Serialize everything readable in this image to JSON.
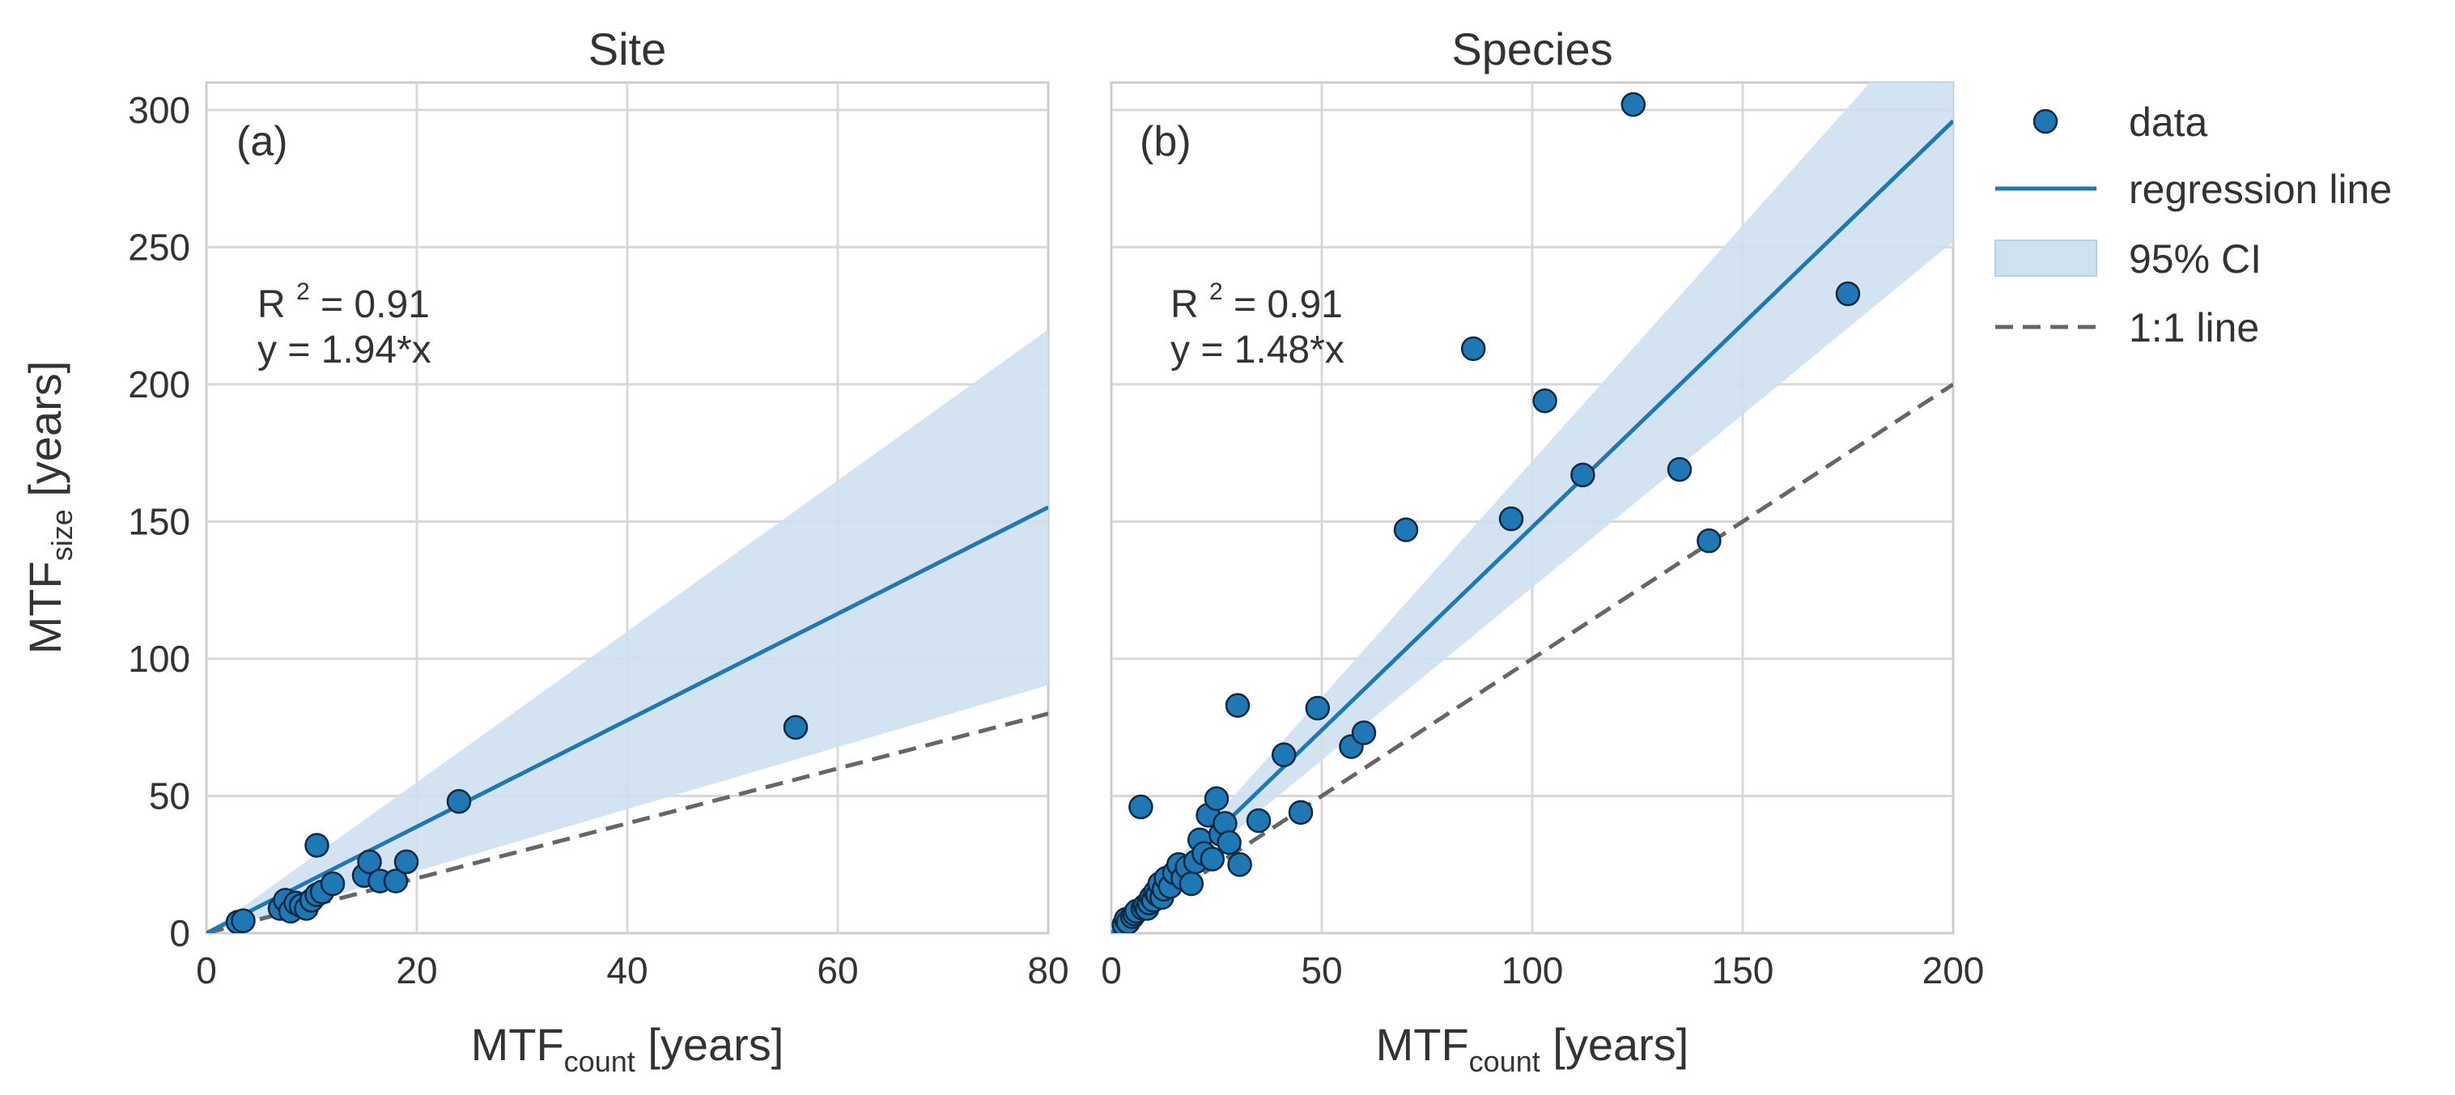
{
  "chart_data": [
    {
      "type": "scatter",
      "title": "Site",
      "panel_label": "(a)",
      "xlabel": {
        "main": "MTF",
        "sub": "count",
        "unit": " [years]"
      },
      "ylabel": {
        "main": "MTF",
        "sub": "size",
        "unit": " [years]"
      },
      "xlim": [
        0,
        80
      ],
      "ylim": [
        0,
        310
      ],
      "xticks": [
        "0",
        "20",
        "40",
        "60",
        "80"
      ],
      "yticks": [
        "0",
        "50",
        "100",
        "150",
        "200",
        "250",
        "300"
      ],
      "grid": true,
      "annotation": {
        "r2": "R",
        "r2_sup": "2",
        "r2_value": "= 0.91",
        "equation": "y = 1.94*x"
      },
      "slope": 1.94,
      "ci_upper_slope": 2.75,
      "ci_lower_slope": 1.13,
      "series": [
        {
          "name": "data",
          "type": "scatter",
          "points": [
            [
              3,
              4
            ],
            [
              3.5,
              4.5
            ],
            [
              7,
              9
            ],
            [
              7.5,
              12
            ],
            [
              8,
              8
            ],
            [
              8.5,
              11
            ],
            [
              9,
              10
            ],
            [
              9.5,
              9
            ],
            [
              10,
              12
            ],
            [
              10.5,
              14
            ],
            [
              11,
              15
            ],
            [
              10.5,
              32
            ],
            [
              12,
              18
            ],
            [
              15,
              21
            ],
            [
              15.5,
              26
            ],
            [
              16.5,
              19
            ],
            [
              18,
              19
            ],
            [
              19,
              26
            ],
            [
              24,
              48
            ],
            [
              56,
              75
            ]
          ]
        },
        {
          "name": "regression line",
          "type": "line",
          "slope": 1.94
        },
        {
          "name": "95% CI",
          "type": "band"
        },
        {
          "name": "1:1 line",
          "type": "line",
          "slope": 1
        }
      ]
    },
    {
      "type": "scatter",
      "title": "Species",
      "panel_label": "(b)",
      "xlabel": {
        "main": "MTF",
        "sub": "count",
        "unit": " [years]"
      },
      "xlim": [
        0,
        200
      ],
      "ylim": [
        0,
        310
      ],
      "xticks": [
        "0",
        "50",
        "100",
        "150",
        "200"
      ],
      "yticks": [
        "0",
        "50",
        "100",
        "150",
        "200",
        "250",
        "300"
      ],
      "grid": true,
      "annotation": {
        "r2": "R",
        "r2_sup": "2",
        "r2_value": "= 0.91",
        "equation": "y = 1.48*x"
      },
      "slope": 1.48,
      "ci_upper_slope": 1.72,
      "ci_lower_slope": 1.26,
      "series": [
        {
          "name": "data",
          "type": "scatter",
          "points": [
            [
              3,
              3
            ],
            [
              3.5,
              5
            ],
            [
              4,
              4
            ],
            [
              5,
              6
            ],
            [
              5.5,
              7
            ],
            [
              6,
              8
            ],
            [
              7,
              46
            ],
            [
              7.5,
              9
            ],
            [
              8,
              10
            ],
            [
              8.5,
              9
            ],
            [
              9,
              11
            ],
            [
              9.5,
              13
            ],
            [
              10,
              12
            ],
            [
              10.5,
              15
            ],
            [
              11,
              14
            ],
            [
              11.5,
              18
            ],
            [
              12,
              13
            ],
            [
              12.5,
              16
            ],
            [
              13,
              20
            ],
            [
              14,
              17
            ],
            [
              15,
              22
            ],
            [
              16,
              25
            ],
            [
              17,
              20
            ],
            [
              18,
              24
            ],
            [
              19,
              18
            ],
            [
              20,
              26
            ],
            [
              21,
              34
            ],
            [
              22,
              29
            ],
            [
              23,
              43
            ],
            [
              24,
              27
            ],
            [
              25,
              49
            ],
            [
              26,
              36
            ],
            [
              27,
              40
            ],
            [
              28,
              33
            ],
            [
              30,
              83
            ],
            [
              30.5,
              25
            ],
            [
              35,
              41
            ],
            [
              41,
              65
            ],
            [
              45,
              44
            ],
            [
              49,
              82
            ],
            [
              57,
              68
            ],
            [
              60,
              73
            ],
            [
              70,
              147
            ],
            [
              86,
              213
            ],
            [
              95,
              151
            ],
            [
              103,
              194
            ],
            [
              112,
              167
            ],
            [
              124,
              302
            ],
            [
              135,
              169
            ],
            [
              142,
              143
            ],
            [
              175,
              233
            ]
          ]
        },
        {
          "name": "regression line",
          "type": "line",
          "slope": 1.48
        },
        {
          "name": "95% CI",
          "type": "band"
        },
        {
          "name": "1:1 line",
          "type": "line",
          "slope": 1
        }
      ]
    }
  ],
  "legend": {
    "placement": "right",
    "items": [
      {
        "label": "data",
        "kind": "marker"
      },
      {
        "label": "regression line",
        "kind": "line"
      },
      {
        "label": "95% CI",
        "kind": "band"
      },
      {
        "label": "1:1 line",
        "kind": "dashed"
      }
    ]
  },
  "colors": {
    "marker_fill": "#1f77b4",
    "marker_edge": "#0d2a45",
    "regression": "#1f77b4",
    "band": "#cfe0f1",
    "identity": "#666666",
    "grid": "#d8d8d8",
    "frame": "#cccccc"
  }
}
